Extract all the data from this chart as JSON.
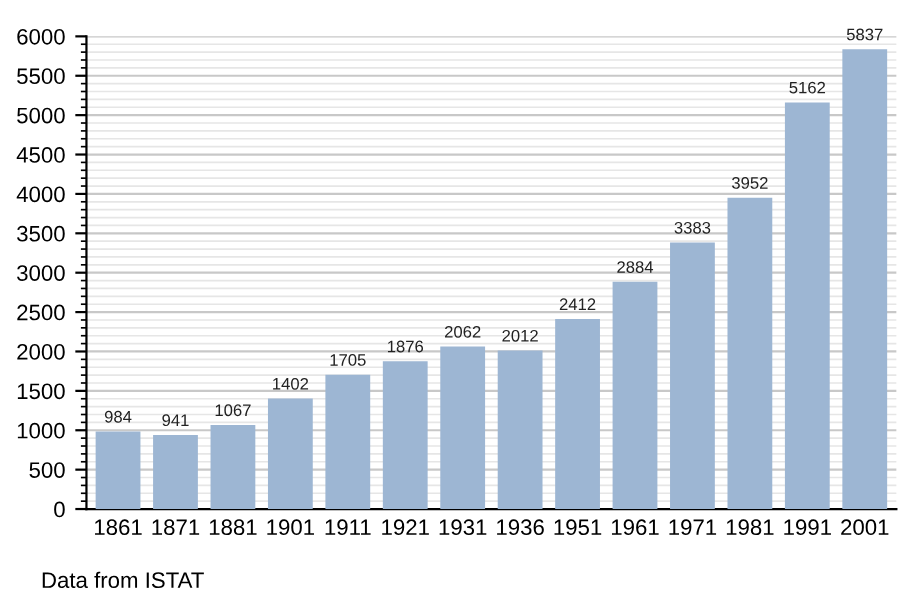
{
  "chart_data": {
    "type": "bar",
    "categories": [
      "1861",
      "1871",
      "1881",
      "1901",
      "1911",
      "1921",
      "1931",
      "1936",
      "1951",
      "1961",
      "1971",
      "1981",
      "1991",
      "2001"
    ],
    "values": [
      984,
      941,
      1067,
      1402,
      1705,
      1876,
      2062,
      2012,
      2412,
      2884,
      3383,
      3952,
      5162,
      5837
    ],
    "color": "#9db6d3",
    "ylim": [
      0,
      6000
    ],
    "yticks": [
      0,
      500,
      1000,
      1500,
      2000,
      2500,
      3000,
      3500,
      4000,
      4500,
      5000,
      5500,
      6000
    ],
    "grid": "y",
    "data_labels": true,
    "annotations": [
      "Data from ISTAT"
    ]
  }
}
